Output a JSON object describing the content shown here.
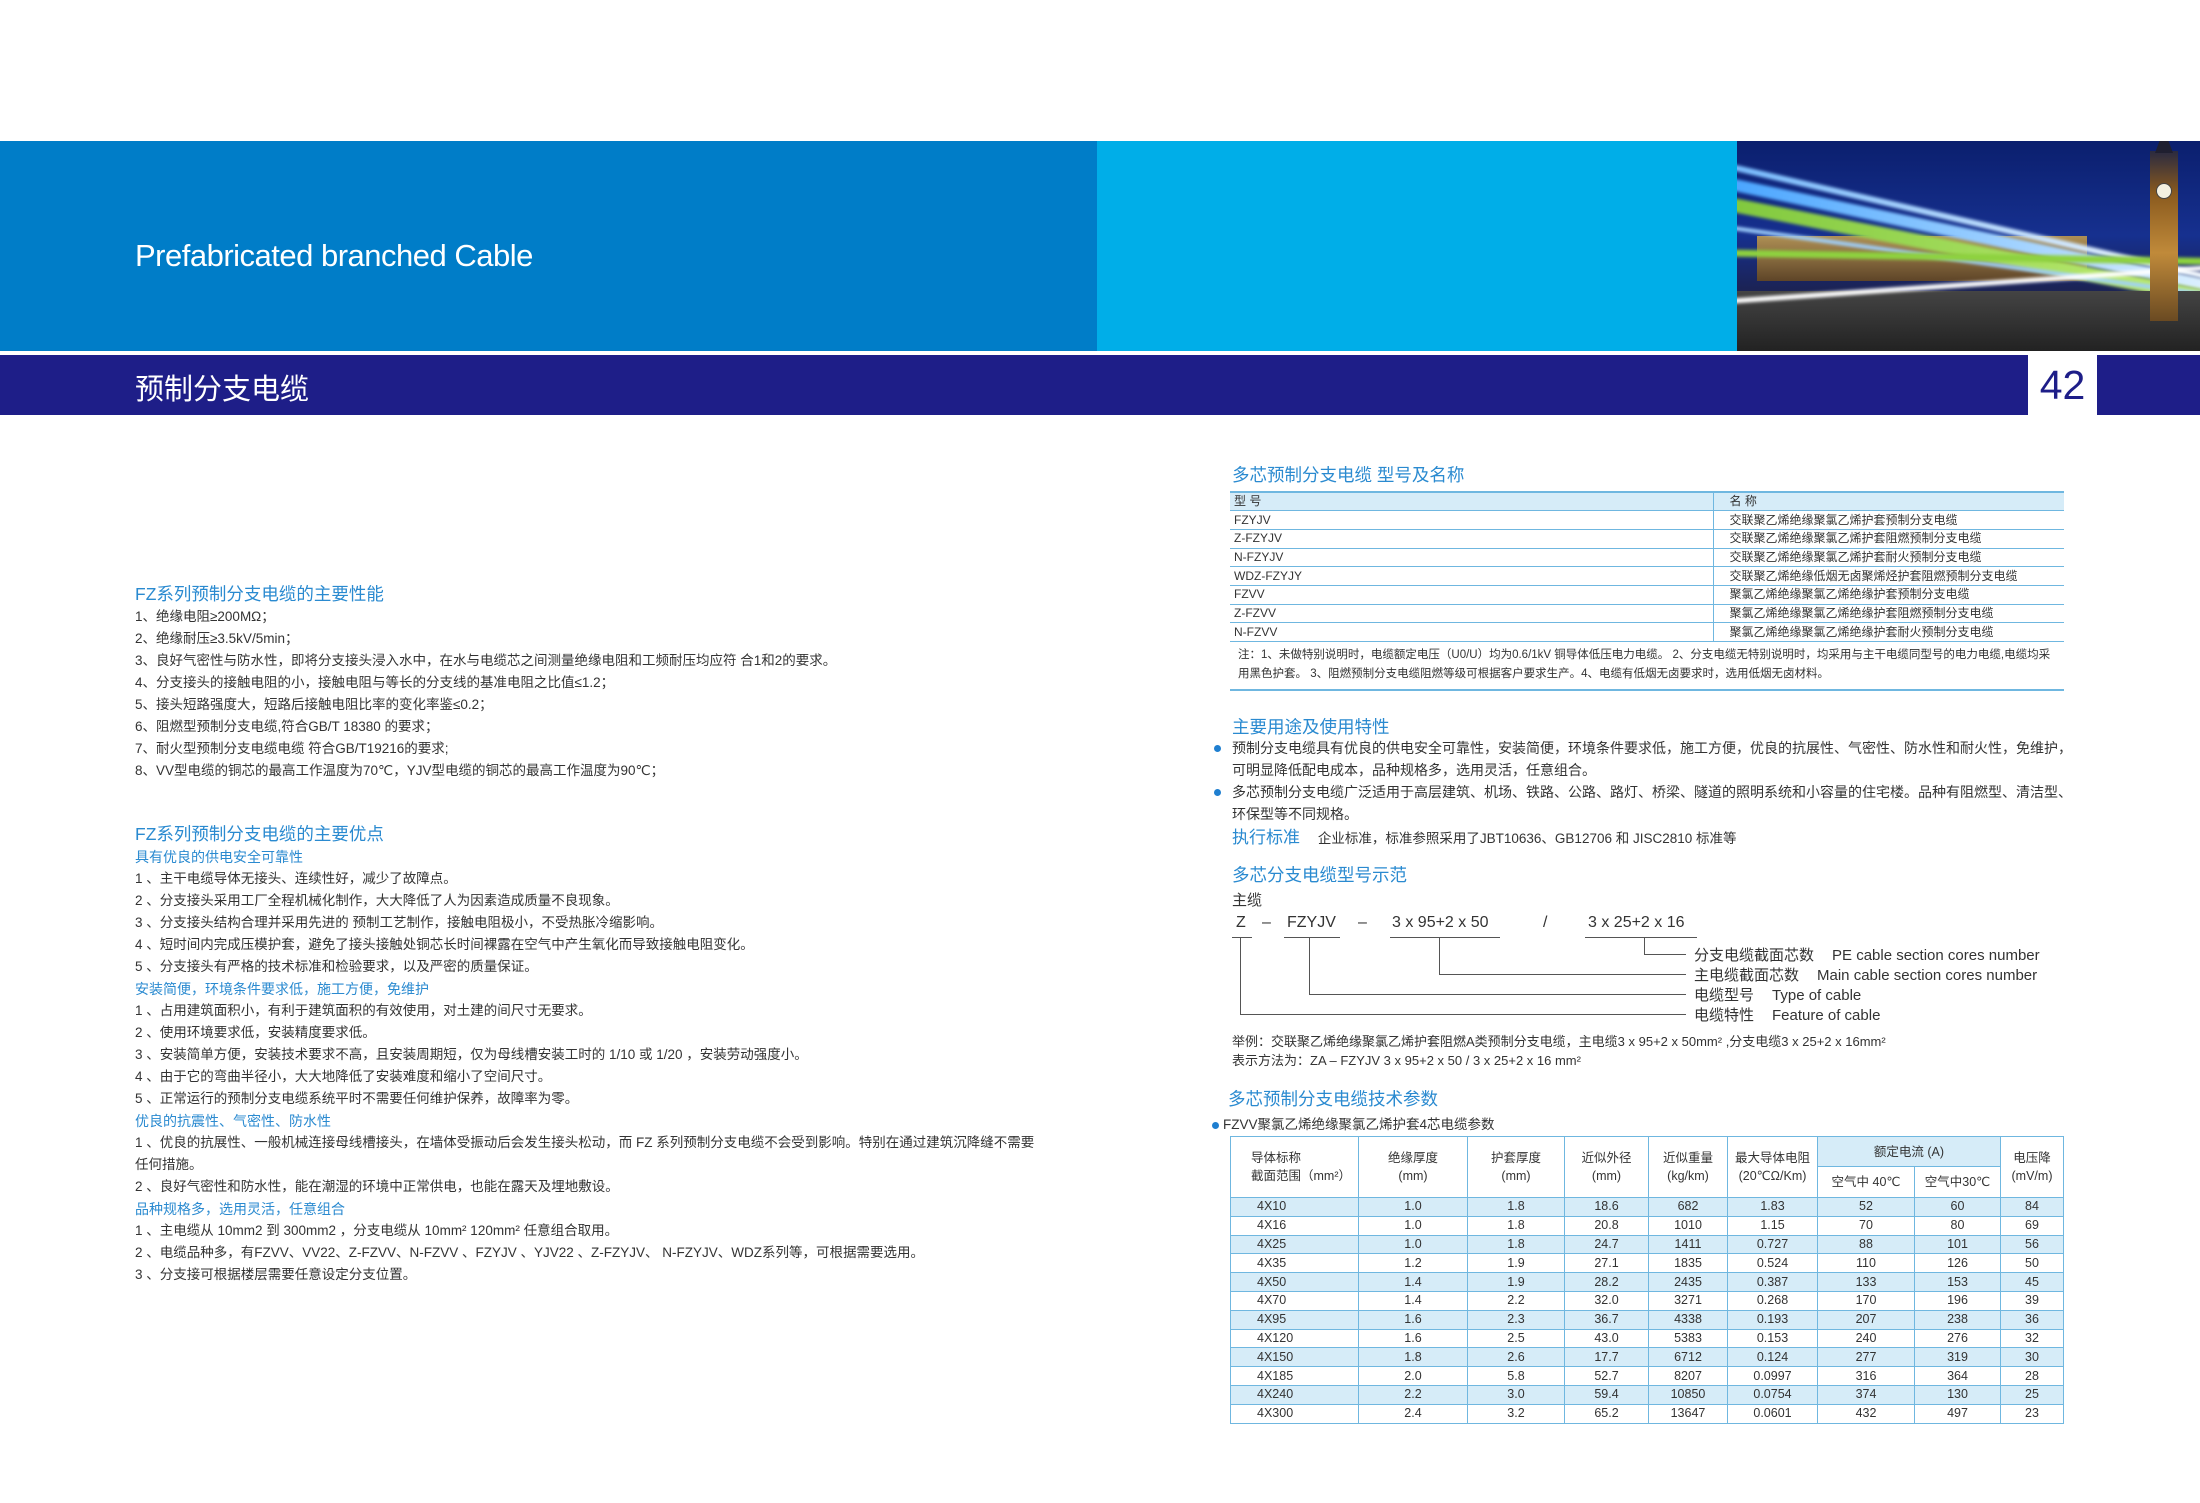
{
  "header": {
    "title_en": "Prefabricated branched Cable",
    "title_zh": "预制分支电缆",
    "page_number": "42",
    "colors": {
      "blue": "#007dc8",
      "cyan": "#00aee8",
      "navy": "#1e1e88",
      "heading": "#2a8ad0",
      "table_fill": "#d6ecf8"
    },
    "photo": "night-city-light-trails-big-ben"
  },
  "performance": {
    "title": "FZ系列预制分支电缆的主要性能",
    "items": [
      "1、绝缘电阻≥200MΩ；",
      "2、绝缘耐压≥3.5kV/5min；",
      "3、良好气密性与防水性，即将分支接头浸入水中，在水与电缆芯之间测量绝缘电阻和工频耐压均应符  合1和2的要求。",
      "4、分支接头的接触电阻的小，接触电阻与等长的分支线的基准电阻之比值≤1.2；",
      "5、接头短路强度大，短路后接触电阻比率的变化率鉴≤0.2；",
      "6、阻燃型预制分支电缆,符合GB/T 18380 的要求；",
      "7、耐火型预制分支电缆电缆 符合GB/T19216的要求;",
      "8、VV型电缆的铜芯的最高工作温度为70℃，YJV型电缆的铜芯的最高工作温度为90℃；"
    ]
  },
  "advantages": {
    "title": "FZ系列预制分支电缆的主要优点",
    "groups": [
      {
        "heading": "具有优良的供电安全可靠性",
        "items": [
          "1 、主干电缆导体无接头、连续性好，减少了故障点。",
          "2 、分支接头采用工厂全程机械化制作，大大降低了人为因素造成质量不良现象。",
          "3 、分支接头结构合理并采用先进的 预制工艺制作，接触电阻极小，不受热胀冷缩影响。",
          "4 、短时间内完成压模护套，避免了接头接触处铜芯长时间裸露在空气中产生氧化而导致接触电阻变化。",
          "5 、分支接头有严格的技术标准和检验要求，以及严密的质量保证。"
        ]
      },
      {
        "heading": "安装简便，环境条件要求低，施工方便，免维护",
        "items": [
          "1 、占用建筑面积小，有利于建筑面积的有效使用，对土建的间尺寸无要求。",
          "2 、使用环境要求低，安装精度要求低。",
          "3 、安装简单方便，安装技术要求不高，且安装周期短，仅为母线槽安装工时的 1/10 或 1/20 ，安装劳动强度小。",
          "4 、由于它的弯曲半径小，大大地降低了安装难度和缩小了空间尺寸。",
          "5 、正常运行的预制分支电缆系统平时不需要任何维护保养，故障率为零。"
        ]
      },
      {
        "heading": "优良的抗震性、气密性、防水性",
        "items": [
          "1 、优良的抗展性、一般机械连接母线槽接头，在墙体受振动后会发生接头松动，而 FZ 系列预制分支电缆不会受到影响。特别在通过建筑沉降缝不需要任何措施。",
          "2 、良好气密性和防水性，能在潮湿的环境中正常供电，也能在露天及埋地敷设。"
        ]
      },
      {
        "heading": "品种规格多，选用灵活，任意组合",
        "items": [
          "1 、主电缆从 10mm2 到 300mm2 ，分支电缆从 10mm²  120mm² 任意组合取用。",
          "2 、电缆品种多，有FZVV、VV22、Z-FZVV、N-FZVV 、FZYJV 、YJV22 、Z-FZYJV、 N-FZYJV、WDZ系列等，可根据需要选用。",
          "3 、分支接可根据楼层需要任意设定分支位置。"
        ]
      }
    ]
  },
  "models": {
    "title": "多芯预制分支电缆  型号及名称",
    "headers": [
      "型 号",
      "名 称"
    ],
    "rows": [
      [
        "FZYJV",
        "交联聚乙烯绝缘聚氯乙烯护套预制分支电缆"
      ],
      [
        "Z-FZYJV",
        "交联聚乙烯绝缘聚氯乙烯护套阻燃预制分支电缆"
      ],
      [
        "N-FZYJV",
        "交联聚乙烯绝缘聚氯乙烯护套耐火预制分支电缆"
      ],
      [
        "WDZ-FZYJY",
        "交联聚乙烯绝缘低烟无卤聚烯烃护套阻燃预制分支电缆"
      ],
      [
        "FZVV",
        "聚氯乙烯绝缘聚氯乙烯绝缘护套预制分支电缆"
      ],
      [
        "Z-FZVV",
        "聚氯乙烯绝缘聚氯乙烯绝缘护套阻燃预制分支电缆"
      ],
      [
        "N-FZVV",
        "聚氯乙烯绝缘聚氯乙烯绝缘护套耐火预制分支电缆"
      ]
    ],
    "note": "注：1、未做特别说明时，电缆额定电压（U0/U）均为0.6/1kV 铜导体低压电力电缆。 2、分支电缆无特别说明时，均采用与主干电缆同型号的电力电缆,电缆均采用黑色护套。 3、阻燃预制分支电缆阻燃等级可根据客户要求生产。4、电缆有低烟无卤要求时，选用低烟无卤材料。"
  },
  "usage": {
    "title": "主要用途及使用特性",
    "bullets": [
      "预制分支电缆具有优良的供电安全可靠性，安装简便，环境条件要求低，施工方便，优良的抗展性、气密性、防水性和耐火性，免维护，可明显降低配电成本，品种规格多，选用灵活，任意组合。",
      "多芯预制分支电缆广泛适用于高层建筑、机场、铁路、公路、路灯、桥梁、隧道的照明系统和小容量的住宅楼。品种有阻燃型、清洁型、环保型等不同规格。"
    ],
    "standard_label": "执行标准",
    "standard_text": "企业标准，标准参照采用了JBT10636、GB12706 和 JISC2810 标准等"
  },
  "example": {
    "title": "多芯分支电缆型号示范",
    "main_label": "主缆",
    "parts": [
      "Z",
      "–",
      "FZYJV",
      "–",
      "3 x 95+2 x 50",
      "/",
      "3 x 25+2 x 16"
    ],
    "legend": [
      {
        "zh": "分支电缆截面芯数",
        "en": "PE cable section cores number"
      },
      {
        "zh": "主电缆截面芯数",
        "en": "Main cable section cores number"
      },
      {
        "zh": "电缆型号",
        "en": "Type of cable"
      },
      {
        "zh": "电缆特性",
        "en": "Feature of cable"
      }
    ],
    "example_line": "举例：交联聚乙烯绝缘聚氯乙烯护套阻燃A类预制分支电缆，主电缆3 x 95+2 x 50mm² ,分支电缆3 x 25+2 x 16mm²",
    "notation_line": "表示方法为：ZA – FZYJV 3 x 95+2 x 50 / 3 x 25+2 x 16 mm²"
  },
  "params": {
    "title": "多芯预制分支电缆技术参数",
    "subtitle": "FZVV聚氯乙烯绝缘聚氯乙烯护套4芯电缆参数",
    "headers": {
      "section": [
        "导体标称",
        "截面范围（mm²）"
      ],
      "insulation": [
        "绝缘厚度",
        "(mm)"
      ],
      "sheath": [
        "护套厚度",
        "(mm)"
      ],
      "diameter": [
        "近似外径",
        "(mm)"
      ],
      "weight": [
        "近似重量",
        "(kg/km)"
      ],
      "resistance": [
        "最大导体电阻",
        "(20℃Ω/Km)"
      ],
      "current": "额定电流 (A)",
      "air40": "空气中 40℃",
      "air30": "空气中30℃",
      "drop": [
        "电压降",
        "(mV/m)"
      ]
    },
    "rows": [
      [
        "4X10",
        "1.0",
        "1.8",
        "18.6",
        "682",
        "1.83",
        "52",
        "60",
        "84"
      ],
      [
        "4X16",
        "1.0",
        "1.8",
        "20.8",
        "1010",
        "1.15",
        "70",
        "80",
        "69"
      ],
      [
        "4X25",
        "1.0",
        "1.8",
        "24.7",
        "1411",
        "0.727",
        "88",
        "101",
        "56"
      ],
      [
        "4X35",
        "1.2",
        "1.9",
        "27.1",
        "1835",
        "0.524",
        "110",
        "126",
        "50"
      ],
      [
        "4X50",
        "1.4",
        "1.9",
        "28.2",
        "2435",
        "0.387",
        "133",
        "153",
        "45"
      ],
      [
        "4X70",
        "1.4",
        "2.2",
        "32.0",
        "3271",
        "0.268",
        "170",
        "196",
        "39"
      ],
      [
        "4X95",
        "1.6",
        "2.3",
        "36.7",
        "4338",
        "0.193",
        "207",
        "238",
        "36"
      ],
      [
        "4X120",
        "1.6",
        "2.5",
        "43.0",
        "5383",
        "0.153",
        "240",
        "276",
        "32"
      ],
      [
        "4X150",
        "1.8",
        "2.6",
        "17.7",
        "6712",
        "0.124",
        "277",
        "319",
        "30"
      ],
      [
        "4X185",
        "2.0",
        "5.8",
        "52.7",
        "8207",
        "0.0997",
        "316",
        "364",
        "28"
      ],
      [
        "4X240",
        "2.2",
        "3.0",
        "59.4",
        "10850",
        "0.0754",
        "374",
        "130",
        "25"
      ],
      [
        "4X300",
        "2.4",
        "3.2",
        "65.2",
        "13647",
        "0.0601",
        "432",
        "497",
        "23"
      ]
    ]
  }
}
